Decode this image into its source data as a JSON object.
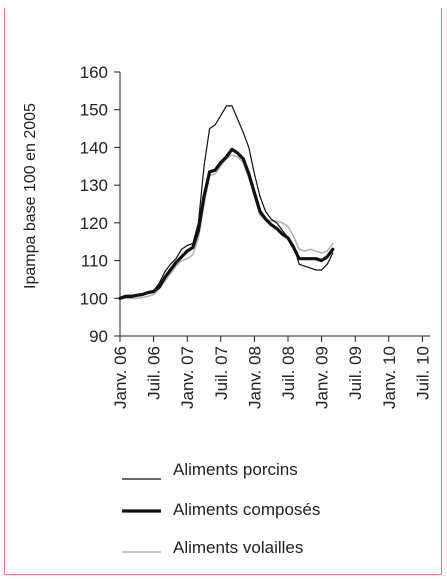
{
  "chart_data": {
    "type": "line",
    "ylabel": "Ipampa base 100 en 2005",
    "ylim": [
      90,
      160
    ],
    "yticks": [
      90,
      100,
      110,
      120,
      130,
      140,
      150,
      160
    ],
    "x_tick_labels": [
      "Janv. 06",
      "Juil. 06",
      "Janv. 07",
      "Juil. 07",
      "Janv. 08",
      "Juil. 08",
      "Janv. 09",
      "Juil. 09",
      "Janv. 10",
      "Juil. 10"
    ],
    "x_tick_months": [
      0,
      6,
      12,
      18,
      24,
      30,
      36,
      42,
      48,
      54
    ],
    "x_range_months": [
      0,
      55
    ],
    "grid": false,
    "legend_position": "bottom",
    "series": [
      {
        "name": "Aliments porcins",
        "color": "#111111",
        "width": 1.2,
        "values": [
          [
            0,
            100
          ],
          [
            1,
            100.8
          ],
          [
            2,
            100.8
          ],
          [
            3,
            101
          ],
          [
            4,
            101
          ],
          [
            5,
            101.5
          ],
          [
            6,
            102
          ],
          [
            7,
            104
          ],
          [
            8,
            107
          ],
          [
            9,
            109
          ],
          [
            10,
            110.5
          ],
          [
            11,
            113
          ],
          [
            12,
            114
          ],
          [
            13,
            114.5
          ],
          [
            14,
            120
          ],
          [
            15,
            135
          ],
          [
            16,
            145
          ],
          [
            17,
            146
          ],
          [
            18,
            148.5
          ],
          [
            19,
            151
          ],
          [
            20,
            151
          ],
          [
            21,
            147.5
          ],
          [
            22,
            144
          ],
          [
            23,
            140
          ],
          [
            24,
            133
          ],
          [
            25,
            127
          ],
          [
            26,
            123
          ],
          [
            27,
            121
          ],
          [
            28,
            120
          ],
          [
            29,
            118
          ],
          [
            30,
            116
          ],
          [
            31,
            114
          ],
          [
            32,
            109
          ],
          [
            33,
            108.5
          ],
          [
            34,
            108
          ],
          [
            35,
            107.5
          ],
          [
            36,
            107.5
          ],
          [
            37,
            109
          ],
          [
            38,
            112
          ]
        ]
      },
      {
        "name": "Aliments composés",
        "color": "#111111",
        "width": 3.2,
        "values": [
          [
            0,
            100
          ],
          [
            1,
            100.5
          ],
          [
            2,
            100.5
          ],
          [
            3,
            100.8
          ],
          [
            4,
            101
          ],
          [
            5,
            101.5
          ],
          [
            6,
            101.8
          ],
          [
            7,
            103
          ],
          [
            8,
            105.5
          ],
          [
            9,
            107.5
          ],
          [
            10,
            109.5
          ],
          [
            11,
            111
          ],
          [
            12,
            112.5
          ],
          [
            13,
            113.5
          ],
          [
            14,
            118
          ],
          [
            15,
            127
          ],
          [
            16,
            133.5
          ],
          [
            17,
            134
          ],
          [
            18,
            136
          ],
          [
            19,
            137.5
          ],
          [
            20,
            139.5
          ],
          [
            21,
            138.5
          ],
          [
            22,
            137
          ],
          [
            23,
            133
          ],
          [
            24,
            128
          ],
          [
            25,
            123
          ],
          [
            26,
            121
          ],
          [
            27,
            119.5
          ],
          [
            28,
            118.5
          ],
          [
            29,
            117
          ],
          [
            30,
            116
          ],
          [
            31,
            113.5
          ],
          [
            32,
            110.5
          ],
          [
            33,
            110.5
          ],
          [
            34,
            110.5
          ],
          [
            35,
            110.5
          ],
          [
            36,
            110
          ],
          [
            37,
            111
          ],
          [
            38,
            113
          ]
        ]
      },
      {
        "name": "Aliments volailles",
        "color": "#b5b5b5",
        "width": 1.6,
        "values": [
          [
            0,
            100
          ],
          [
            1,
            100
          ],
          [
            2,
            100
          ],
          [
            3,
            100
          ],
          [
            4,
            100.2
          ],
          [
            5,
            100.5
          ],
          [
            6,
            101
          ],
          [
            7,
            102.5
          ],
          [
            8,
            104.5
          ],
          [
            9,
            106.5
          ],
          [
            10,
            108.5
          ],
          [
            11,
            110
          ],
          [
            12,
            110.5
          ],
          [
            13,
            111.5
          ],
          [
            14,
            116
          ],
          [
            15,
            125
          ],
          [
            16,
            132.5
          ],
          [
            17,
            133
          ],
          [
            18,
            135
          ],
          [
            19,
            137
          ],
          [
            20,
            138
          ],
          [
            21,
            137.5
          ],
          [
            22,
            136
          ],
          [
            23,
            132
          ],
          [
            24,
            127
          ],
          [
            25,
            122
          ],
          [
            26,
            121
          ],
          [
            27,
            120.5
          ],
          [
            28,
            120.5
          ],
          [
            29,
            120
          ],
          [
            30,
            119
          ],
          [
            31,
            116.5
          ],
          [
            32,
            113
          ],
          [
            33,
            112.5
          ],
          [
            34,
            113
          ],
          [
            35,
            112.5
          ],
          [
            36,
            112
          ],
          [
            37,
            112.5
          ],
          [
            38,
            114.5
          ]
        ]
      }
    ]
  },
  "legend": {
    "items": [
      {
        "label": "Aliments porcins"
      },
      {
        "label": "Aliments composés"
      },
      {
        "label": "Aliments volailles"
      }
    ]
  }
}
